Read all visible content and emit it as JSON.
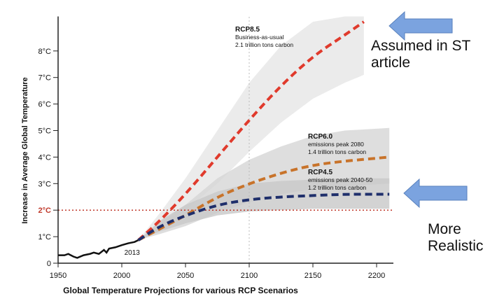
{
  "chart_data": {
    "type": "line",
    "title": "Global Temperature Projections for various RCP Scenarios",
    "xlabel": "Global Temperature Projections for various RCP Scenarios",
    "ylabel": "Increase in Average Global Temperature",
    "xlim": [
      1950,
      2212
    ],
    "ylim": [
      0,
      9.3
    ],
    "xticks": [
      {
        "v": 1950,
        "t": "1950"
      },
      {
        "v": 2000,
        "t": "2000"
      },
      {
        "v": 2050,
        "t": "2050"
      },
      {
        "v": 2100,
        "t": "2100"
      },
      {
        "v": 2150,
        "t": "2150"
      },
      {
        "v": 2200,
        "t": "2200"
      }
    ],
    "yticks": [
      {
        "v": 0,
        "t": "0"
      },
      {
        "v": 1,
        "t": "1°C"
      },
      {
        "v": 2,
        "t": "2°C"
      },
      {
        "v": 3,
        "t": "3°C"
      },
      {
        "v": 4,
        "t": "4°C"
      },
      {
        "v": 5,
        "t": "5°C"
      },
      {
        "v": 6,
        "t": "6°C"
      },
      {
        "v": 7,
        "t": "7°C"
      },
      {
        "v": 8,
        "t": "8°C"
      }
    ],
    "threshold": {
      "value": 2,
      "label": "2°C",
      "color": "#c0392b"
    },
    "historical": {
      "label": "2013",
      "x": [
        1950,
        1955,
        1958,
        1962,
        1965,
        1970,
        1975,
        1978,
        1982,
        1986,
        1988,
        1990,
        1995,
        2000,
        2005,
        2010,
        2013
      ],
      "y": [
        0.3,
        0.3,
        0.35,
        0.25,
        0.2,
        0.3,
        0.35,
        0.4,
        0.35,
        0.5,
        0.4,
        0.55,
        0.6,
        0.68,
        0.75,
        0.8,
        0.87
      ]
    },
    "series": [
      {
        "name": "RCP8.5",
        "desc": "Business-as-usual",
        "carbon": "2.1 trillion tons carbon",
        "color": "#e03a2c",
        "x": [
          2013,
          2030,
          2050,
          2075,
          2100,
          2125,
          2150,
          2175,
          2190
        ],
        "y": [
          0.87,
          1.6,
          2.6,
          4.0,
          5.4,
          6.7,
          7.8,
          8.6,
          9.1
        ],
        "band_low": [
          0.87,
          1.3,
          2.0,
          3.0,
          4.2,
          5.3,
          6.2,
          6.8,
          7.1
        ],
        "band_high": [
          0.87,
          1.9,
          3.2,
          5.0,
          6.8,
          8.2,
          9.1,
          9.3,
          9.3
        ]
      },
      {
        "name": "RCP6.0",
        "desc": "emissions peak 2080",
        "carbon": "1.4 trillion tons carbon",
        "color": "#c8732a",
        "x": [
          2013,
          2030,
          2050,
          2075,
          2100,
          2125,
          2150,
          2175,
          2210
        ],
        "y": [
          0.87,
          1.3,
          1.8,
          2.5,
          3.0,
          3.4,
          3.7,
          3.85,
          4.0
        ],
        "band_low": [
          0.87,
          1.1,
          1.4,
          1.9,
          2.3,
          2.6,
          2.8,
          2.9,
          3.0
        ],
        "band_high": [
          0.87,
          1.5,
          2.2,
          3.2,
          3.9,
          4.4,
          4.8,
          5.0,
          5.1
        ]
      },
      {
        "name": "RCP4.5",
        "desc": "emissions peak 2040-50",
        "carbon": "1.2 trillion tons carbon",
        "color": "#1f2f6b",
        "x": [
          2013,
          2030,
          2050,
          2075,
          2100,
          2125,
          2150,
          2175,
          2210
        ],
        "y": [
          0.87,
          1.4,
          1.8,
          2.2,
          2.4,
          2.5,
          2.55,
          2.6,
          2.6
        ],
        "band_low": [
          0.87,
          1.2,
          1.5,
          1.8,
          1.95,
          2.0,
          2.05,
          2.05,
          2.05
        ],
        "band_high": [
          0.87,
          1.6,
          2.2,
          2.7,
          3.0,
          3.1,
          3.15,
          3.2,
          3.2
        ]
      }
    ]
  },
  "annotations": {
    "top": "Assumed in ST article",
    "bottom": "More Realistic"
  }
}
